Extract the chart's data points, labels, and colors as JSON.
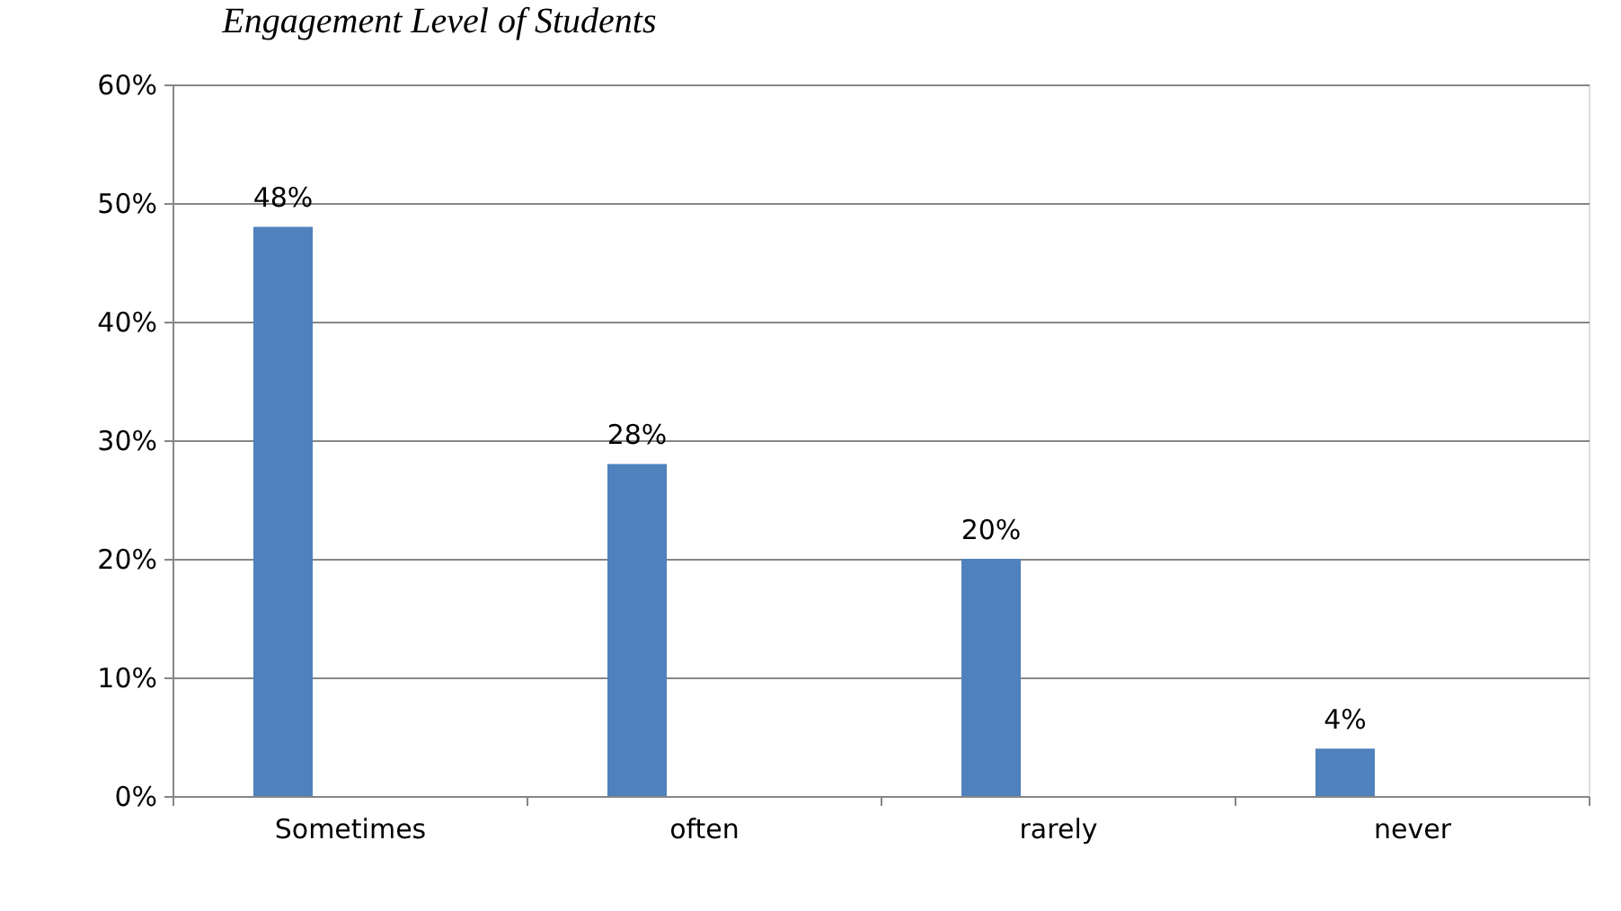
{
  "chart_data": {
    "type": "bar",
    "title": "Engagement Level of Students",
    "categories": [
      "Sometimes",
      "often",
      "rarely",
      "never"
    ],
    "values": [
      48,
      28,
      20,
      4
    ],
    "value_labels": [
      "48%",
      "28%",
      "20%",
      "4%"
    ],
    "color": "#4f81bd",
    "ylim": [
      0,
      60
    ],
    "yticks": [
      {
        "value": 0,
        "label": "0%"
      },
      {
        "value": 10,
        "label": "10%"
      },
      {
        "value": 20,
        "label": "20%"
      },
      {
        "value": 30,
        "label": "30%"
      },
      {
        "value": 40,
        "label": "40%"
      },
      {
        "value": 50,
        "label": "50%"
      },
      {
        "value": 60,
        "label": "60%"
      }
    ],
    "grid": "y"
  }
}
